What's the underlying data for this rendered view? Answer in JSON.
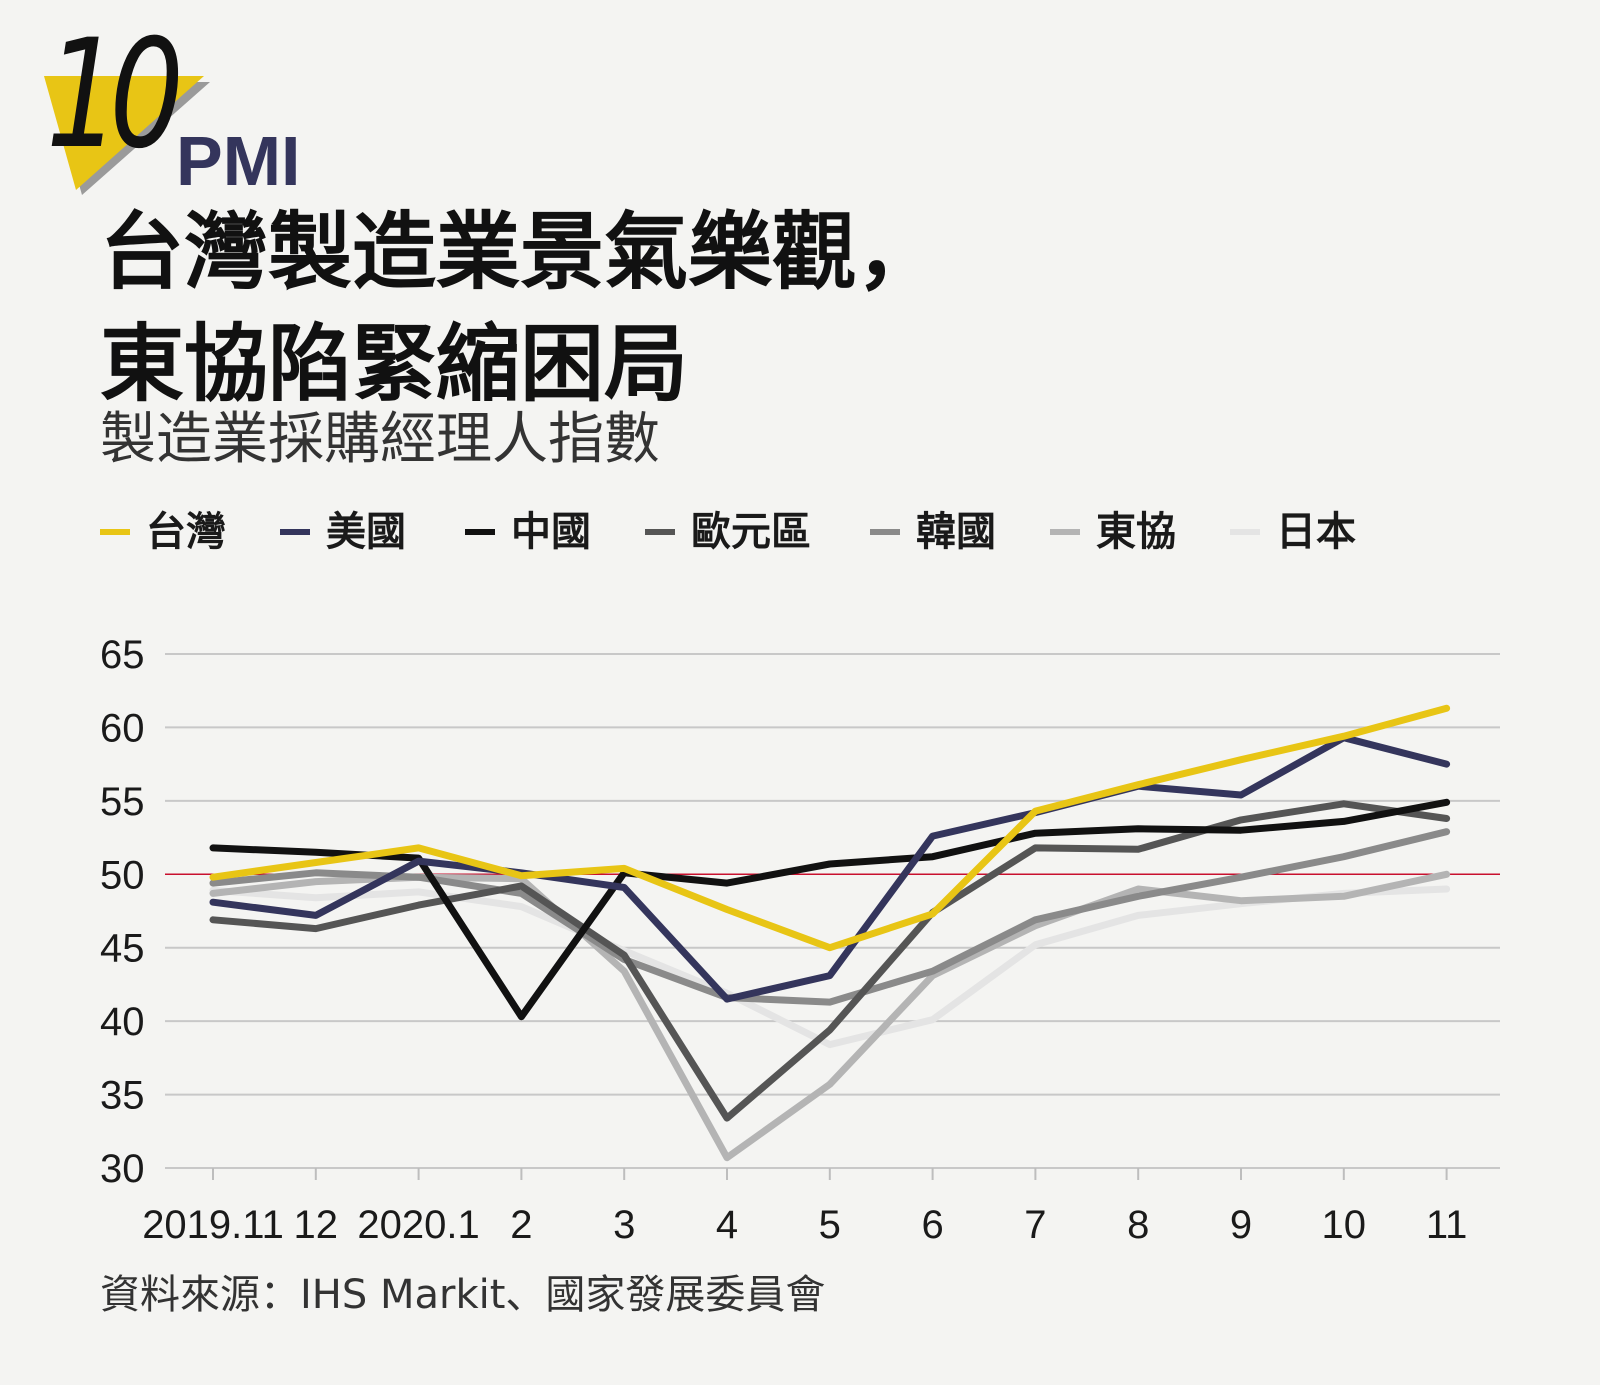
{
  "badge": {
    "number": "10",
    "tag": "PMI"
  },
  "title": {
    "line1": "台灣製造業景氣樂觀，",
    "line2": "東協陷緊縮困局"
  },
  "subtitle": "製造業採購經理人指數",
  "source": "資料來源：IHS Markit、國家發展委員會",
  "colors": {
    "badge_yellow": "#e8c515",
    "reference_line": "#c8102e",
    "grid": "#c8c8c8"
  },
  "chart_data": {
    "type": "line",
    "x": [
      "2019.11",
      "12",
      "2020.1",
      "2",
      "3",
      "4",
      "5",
      "6",
      "7",
      "8",
      "9",
      "10",
      "11"
    ],
    "ylim": [
      30,
      65
    ],
    "yticks": [
      30,
      35,
      40,
      45,
      50,
      55,
      60,
      65
    ],
    "reference_line": 50,
    "grid": true,
    "legend_position": "top",
    "series": [
      {
        "name": "日本",
        "color": "#e4e4e4",
        "values": [
          48.9,
          48.4,
          48.8,
          47.8,
          44.8,
          41.9,
          38.4,
          40.1,
          45.2,
          47.2,
          48.0,
          48.7,
          49.0
        ]
      },
      {
        "name": "東協",
        "color": "#b4b4b4",
        "values": [
          48.7,
          49.5,
          49.8,
          49.7,
          43.4,
          30.7,
          35.7,
          43.1,
          46.5,
          49.0,
          48.2,
          48.5,
          50.0
        ]
      },
      {
        "name": "韓國",
        "color": "#8a8a8a",
        "values": [
          49.4,
          50.1,
          49.8,
          48.7,
          44.2,
          41.6,
          41.3,
          43.4,
          46.9,
          48.5,
          49.8,
          51.2,
          52.9
        ]
      },
      {
        "name": "歐元區",
        "color": "#555555",
        "values": [
          46.9,
          46.3,
          47.9,
          49.2,
          44.5,
          33.4,
          39.4,
          47.4,
          51.8,
          51.7,
          53.7,
          54.8,
          53.8
        ]
      },
      {
        "name": "中國",
        "color": "#111111",
        "values": [
          51.8,
          51.5,
          51.1,
          40.3,
          50.1,
          49.4,
          50.7,
          51.2,
          52.8,
          53.1,
          53.0,
          53.6,
          54.9
        ]
      },
      {
        "name": "美國",
        "color": "#34355c",
        "values": [
          48.1,
          47.2,
          50.9,
          50.1,
          49.1,
          41.5,
          43.1,
          52.6,
          54.2,
          56.0,
          55.4,
          59.3,
          57.5
        ]
      },
      {
        "name": "台灣",
        "color": "#e8c515",
        "values": [
          49.8,
          50.8,
          51.8,
          49.9,
          50.4,
          47.6,
          45.0,
          47.3,
          54.3,
          56.1,
          57.8,
          59.4,
          61.3
        ]
      }
    ]
  },
  "legend_order": [
    6,
    5,
    4,
    3,
    2,
    1,
    0
  ]
}
